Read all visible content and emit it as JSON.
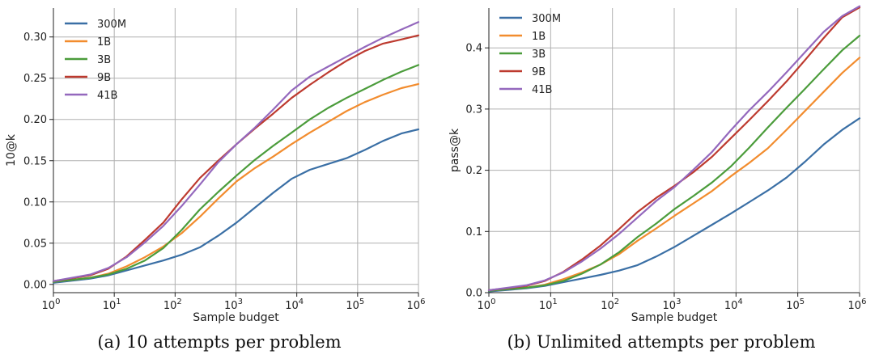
{
  "colors": {
    "300M": "#3a6fa5",
    "1B": "#f28c2e",
    "3B": "#4b9c3b",
    "9B": "#bd3a2f",
    "41B": "#9468bd"
  },
  "chart_data": [
    {
      "type": "line",
      "caption": "(a) 10 attempts per problem",
      "xlabel": "Sample budget",
      "ylabel": "10@k",
      "xscale": "log",
      "xlim": [
        1,
        1000000
      ],
      "ylim": [
        -0.01,
        0.335
      ],
      "yticks": [
        0.0,
        0.05,
        0.1,
        0.15,
        0.2,
        0.25,
        0.3
      ],
      "ytick_labels": [
        "0.00",
        "0.05",
        "0.10",
        "0.15",
        "0.20",
        "0.25",
        "0.30"
      ],
      "xtick_bases": [
        "10",
        "10",
        "10",
        "10",
        "10",
        "10",
        "10"
      ],
      "xtick_exps": [
        "0",
        "1",
        "2",
        "3",
        "4",
        "5",
        "6"
      ],
      "grid": true,
      "legend": "top-left",
      "x": [
        1,
        4,
        8,
        16,
        32,
        64,
        128,
        256,
        512,
        1024,
        2048,
        4096,
        8192,
        16384,
        32768,
        65536,
        131072,
        262144,
        524288,
        1000000
      ],
      "series": [
        {
          "name": "300M",
          "values": [
            0.002,
            0.007,
            0.011,
            0.017,
            0.023,
            0.029,
            0.036,
            0.045,
            0.059,
            0.075,
            0.093,
            0.111,
            0.128,
            0.139,
            0.146,
            0.153,
            0.163,
            0.174,
            0.183,
            0.188
          ]
        },
        {
          "name": "1B",
          "values": [
            0.003,
            0.008,
            0.013,
            0.022,
            0.033,
            0.046,
            0.062,
            0.082,
            0.104,
            0.125,
            0.141,
            0.155,
            0.17,
            0.184,
            0.197,
            0.21,
            0.221,
            0.23,
            0.238,
            0.243
          ]
        },
        {
          "name": "3B",
          "values": [
            0.003,
            0.008,
            0.012,
            0.019,
            0.029,
            0.044,
            0.066,
            0.091,
            0.112,
            0.132,
            0.151,
            0.168,
            0.184,
            0.2,
            0.214,
            0.226,
            0.237,
            0.248,
            0.258,
            0.266
          ]
        },
        {
          "name": "9B",
          "values": [
            0.004,
            0.011,
            0.019,
            0.034,
            0.054,
            0.075,
            0.103,
            0.129,
            0.15,
            0.17,
            0.189,
            0.207,
            0.226,
            0.242,
            0.257,
            0.271,
            0.283,
            0.292,
            0.297,
            0.302
          ]
        },
        {
          "name": "41B",
          "values": [
            0.004,
            0.012,
            0.02,
            0.033,
            0.051,
            0.071,
            0.095,
            0.121,
            0.148,
            0.17,
            0.19,
            0.212,
            0.235,
            0.252,
            0.264,
            0.276,
            0.288,
            0.299,
            0.309,
            0.318
          ]
        }
      ]
    },
    {
      "type": "line",
      "caption": "(b) Unlimited attempts per problem",
      "xlabel": "Sample budget",
      "ylabel": "pass@k",
      "xscale": "log",
      "xlim": [
        1,
        1000000
      ],
      "ylim": [
        0.0,
        0.465
      ],
      "yticks": [
        0.0,
        0.1,
        0.2,
        0.3,
        0.4
      ],
      "ytick_labels": [
        "0.0",
        "0.1",
        "0.2",
        "0.3",
        "0.4"
      ],
      "xtick_bases": [
        "10",
        "10",
        "10",
        "10",
        "10",
        "10",
        "10"
      ],
      "xtick_exps": [
        "0",
        "1",
        "2",
        "3",
        "4",
        "5",
        "6"
      ],
      "grid": true,
      "legend": "top-left",
      "x": [
        1,
        4,
        8,
        16,
        32,
        64,
        128,
        256,
        512,
        1024,
        2048,
        4096,
        8192,
        16384,
        32768,
        65536,
        131072,
        262144,
        524288,
        1000000
      ],
      "series": [
        {
          "name": "300M",
          "values": [
            0.002,
            0.007,
            0.011,
            0.017,
            0.023,
            0.029,
            0.036,
            0.045,
            0.059,
            0.075,
            0.093,
            0.111,
            0.129,
            0.148,
            0.167,
            0.188,
            0.214,
            0.242,
            0.266,
            0.285
          ]
        },
        {
          "name": "1B",
          "values": [
            0.003,
            0.008,
            0.013,
            0.022,
            0.033,
            0.046,
            0.063,
            0.085,
            0.105,
            0.126,
            0.146,
            0.166,
            0.19,
            0.212,
            0.236,
            0.266,
            0.297,
            0.328,
            0.359,
            0.384
          ]
        },
        {
          "name": "3B",
          "values": [
            0.003,
            0.008,
            0.012,
            0.019,
            0.031,
            0.046,
            0.066,
            0.091,
            0.113,
            0.137,
            0.158,
            0.18,
            0.206,
            0.237,
            0.27,
            0.302,
            0.333,
            0.365,
            0.396,
            0.42
          ]
        },
        {
          "name": "9B",
          "values": [
            0.004,
            0.011,
            0.019,
            0.034,
            0.054,
            0.077,
            0.104,
            0.132,
            0.155,
            0.175,
            0.197,
            0.222,
            0.252,
            0.282,
            0.313,
            0.345,
            0.38,
            0.416,
            0.45,
            0.466
          ]
        },
        {
          "name": "41B",
          "values": [
            0.004,
            0.012,
            0.02,
            0.033,
            0.051,
            0.072,
            0.096,
            0.123,
            0.15,
            0.173,
            0.201,
            0.23,
            0.265,
            0.298,
            0.328,
            0.36,
            0.393,
            0.426,
            0.452,
            0.468
          ]
        }
      ]
    }
  ]
}
